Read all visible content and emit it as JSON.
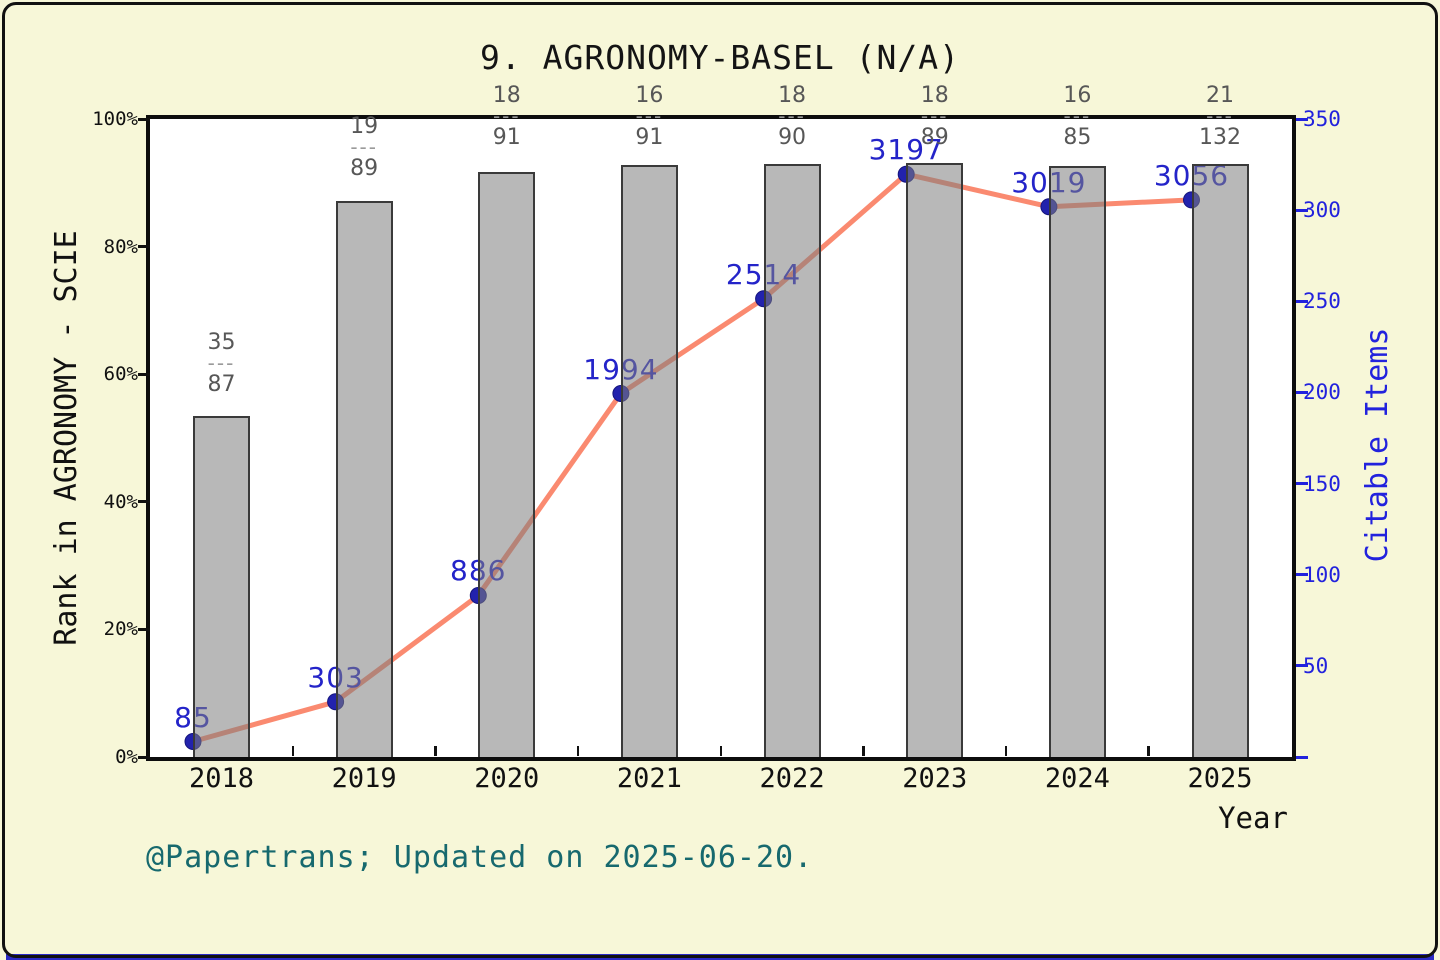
{
  "title": "9. AGRONOMY-BASEL (N/A)",
  "footer": "@Papertrans; Updated on 2025-06-20.",
  "chart_data": {
    "type": "combo",
    "title": "9. AGRONOMY-BASEL (N/A)",
    "xlabel": "Year",
    "categories": [
      "2018",
      "2019",
      "2020",
      "2021",
      "2022",
      "2023",
      "2024",
      "2025"
    ],
    "bar_series": {
      "name": "Rank in AGRONOMY - SCIE",
      "type": "bar",
      "axis": "left",
      "ylabel": "Rank in AGRONOMY - SCIE",
      "ylim_percent": [
        0,
        100
      ],
      "ticks": [
        "0%",
        "20%",
        "40%",
        "60%",
        "80%",
        "100%"
      ],
      "tick_values": [
        0,
        20,
        40,
        60,
        80,
        100
      ],
      "rank": [
        35,
        19,
        18,
        16,
        18,
        18,
        16,
        21
      ],
      "total": [
        87,
        89,
        91,
        91,
        90,
        89,
        85,
        132
      ],
      "rank_labels": [
        "35/87",
        "19/89",
        "18/91",
        "16/91",
        "18/90",
        "18/89",
        "16/85",
        "21/132"
      ],
      "fraction_dash": "---",
      "bar_height_percent": [
        53.4,
        87.1,
        91.7,
        92.8,
        92.9,
        93.1,
        92.6,
        92.9
      ]
    },
    "line_series": {
      "name": "Citable Items",
      "type": "line",
      "axis": "right",
      "ylabel": "Citable Items",
      "ylim": [
        0,
        350
      ],
      "ticks": [
        50,
        100,
        150,
        200,
        250,
        300,
        350
      ],
      "point_labels": [
        "85",
        "303",
        "886",
        "1994",
        "2514",
        "3197",
        "3019",
        "3056"
      ],
      "plotted_values": [
        8.5,
        30.3,
        88.6,
        199.4,
        251.4,
        319.7,
        301.9,
        305.6
      ]
    },
    "legend": "none",
    "grid": false
  },
  "colors": {
    "background": "#f7f7d8",
    "plot_background": "#ffffff",
    "line": "#fa8a70",
    "marker": "#2222ad",
    "marker_edge": "#14147d",
    "value_label": "#2424c9",
    "bar_fill": "rgba(125,125,125,0.55)",
    "bar_border": "#3a3a3a",
    "right_axis": "#2222dd",
    "left_axis": "#111111",
    "fraction_text": "#575757",
    "fraction_dash": "#9a9a9a",
    "footer_text": "#17696e",
    "frame_border": "#111111",
    "bottom_strip": "#2a2ac4"
  }
}
